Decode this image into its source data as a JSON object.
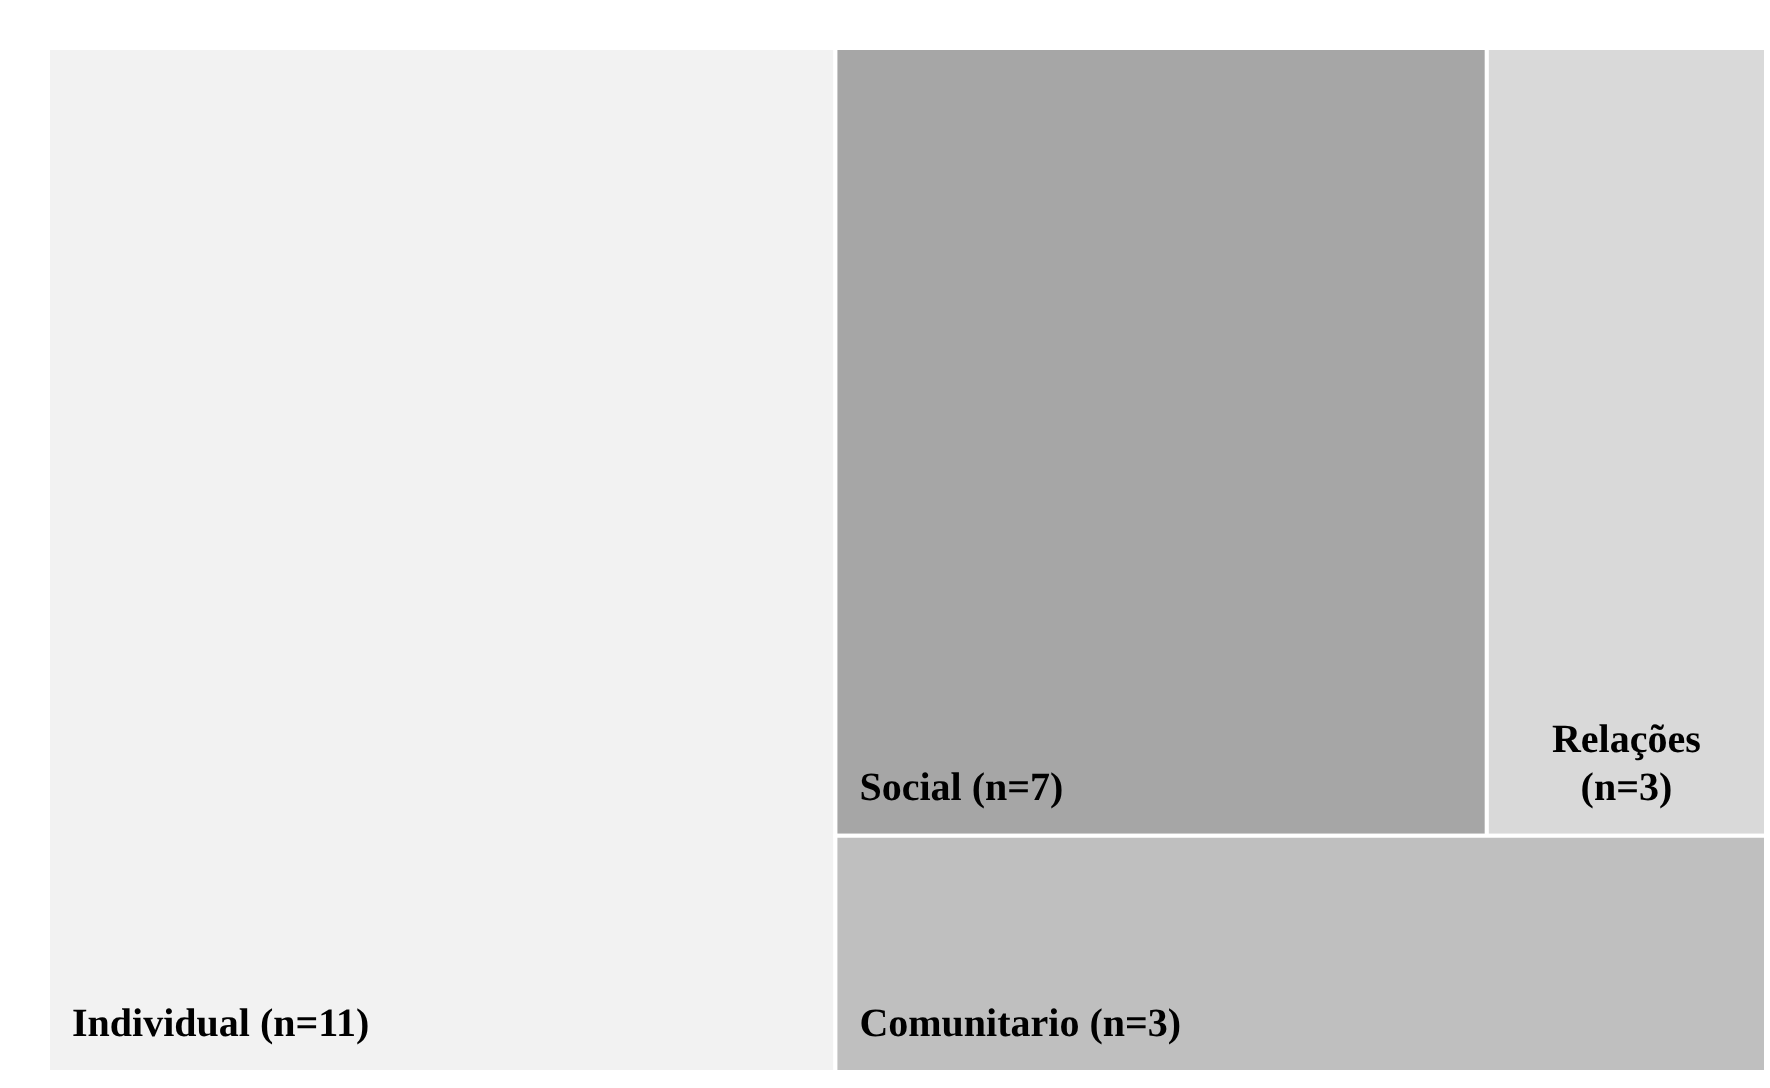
{
  "chart_data": {
    "type": "other",
    "categories": [
      "Individual",
      "Social",
      "Relações",
      "Comunitario"
    ],
    "values": [
      11,
      7,
      3,
      3
    ],
    "value_labels": [
      "(n=11)",
      "(n=7)",
      "(n=3)",
      "(n=3)"
    ],
    "colors": [
      "#f2f2f2",
      "#a6a6a6",
      "#d9d9d9",
      "#bfbfbf"
    ]
  }
}
